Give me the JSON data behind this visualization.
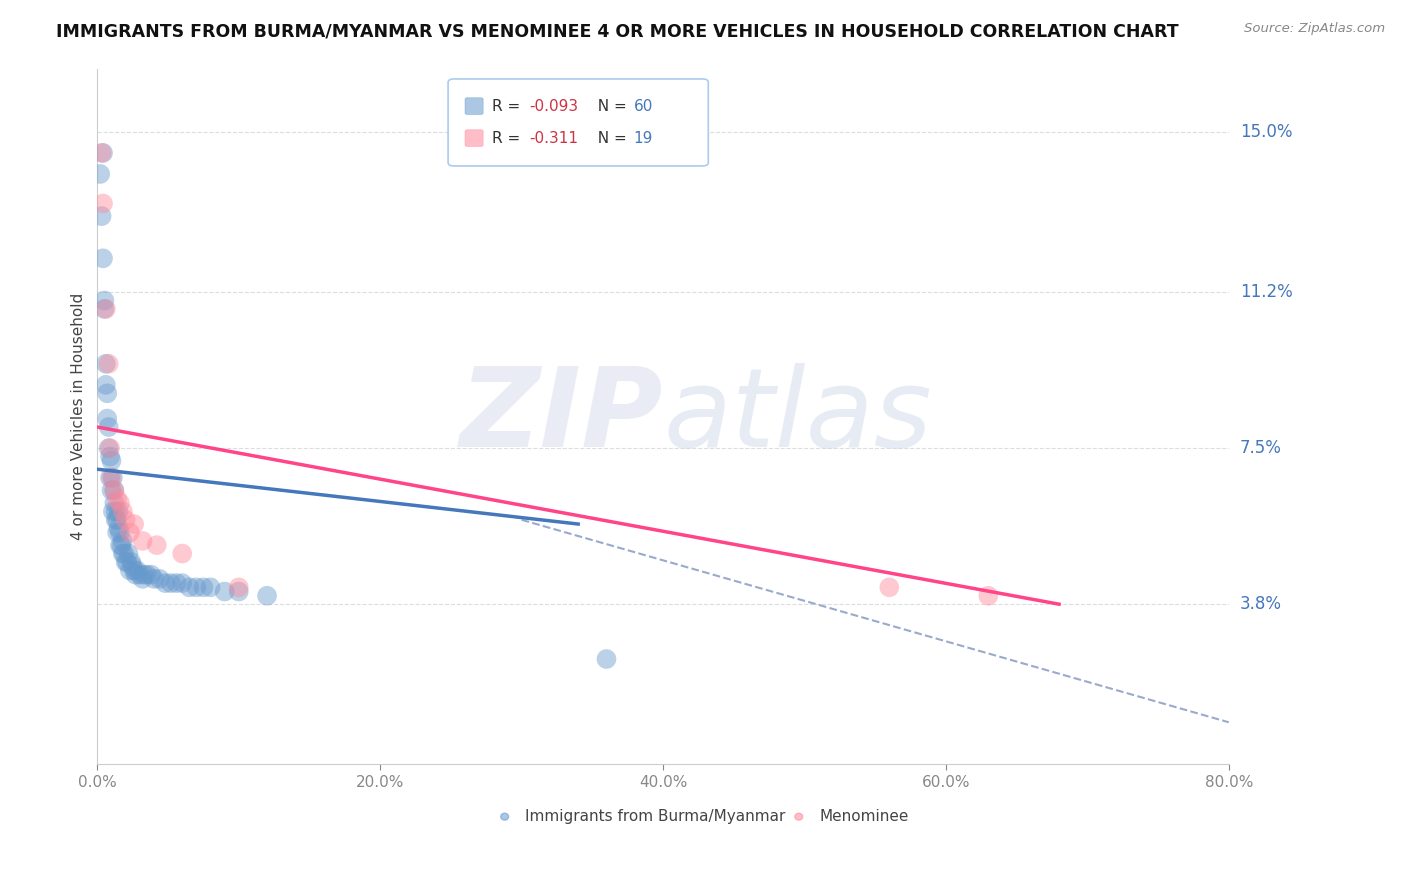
{
  "title": "IMMIGRANTS FROM BURMA/MYANMAR VS MENOMINEE 4 OR MORE VEHICLES IN HOUSEHOLD CORRELATION CHART",
  "source": "Source: ZipAtlas.com",
  "ylabel": "4 or more Vehicles in Household",
  "legend_labels": [
    "Immigrants from Burma/Myanmar",
    "Menominee"
  ],
  "blue_R": -0.093,
  "blue_N": 60,
  "pink_R": -0.311,
  "pink_N": 19,
  "blue_color": "#6699CC",
  "pink_color": "#FF8899",
  "blue_line_color": "#4477BB",
  "pink_line_color": "#FF4488",
  "dashed_line_color": "#99AACC",
  "xlim": [
    0.0,
    0.8
  ],
  "ylim": [
    0.0,
    0.165
  ],
  "yticks": [
    0.038,
    0.075,
    0.112,
    0.15
  ],
  "ytick_labels": [
    "3.8%",
    "7.5%",
    "11.2%",
    "15.0%"
  ],
  "xticks": [
    0.0,
    0.2,
    0.4,
    0.6,
    0.8
  ],
  "xtick_labels": [
    "0.0%",
    "20.0%",
    "40.0%",
    "60.0%",
    "80.0%"
  ],
  "blue_scatter_x": [
    0.002,
    0.003,
    0.004,
    0.004,
    0.005,
    0.005,
    0.006,
    0.006,
    0.007,
    0.007,
    0.008,
    0.008,
    0.009,
    0.009,
    0.01,
    0.01,
    0.011,
    0.011,
    0.012,
    0.012,
    0.013,
    0.013,
    0.014,
    0.014,
    0.015,
    0.015,
    0.016,
    0.016,
    0.017,
    0.018,
    0.018,
    0.019,
    0.02,
    0.021,
    0.022,
    0.023,
    0.024,
    0.025,
    0.026,
    0.027,
    0.028,
    0.03,
    0.032,
    0.033,
    0.035,
    0.038,
    0.04,
    0.044,
    0.048,
    0.052,
    0.056,
    0.06,
    0.065,
    0.07,
    0.075,
    0.08,
    0.09,
    0.1,
    0.12,
    0.36
  ],
  "blue_scatter_y": [
    0.14,
    0.13,
    0.12,
    0.145,
    0.11,
    0.108,
    0.095,
    0.09,
    0.088,
    0.082,
    0.08,
    0.075,
    0.073,
    0.068,
    0.072,
    0.065,
    0.068,
    0.06,
    0.065,
    0.062,
    0.06,
    0.058,
    0.058,
    0.055,
    0.06,
    0.056,
    0.055,
    0.052,
    0.052,
    0.05,
    0.053,
    0.05,
    0.048,
    0.048,
    0.05,
    0.046,
    0.048,
    0.047,
    0.046,
    0.045,
    0.046,
    0.045,
    0.044,
    0.045,
    0.045,
    0.045,
    0.044,
    0.044,
    0.043,
    0.043,
    0.043,
    0.043,
    0.042,
    0.042,
    0.042,
    0.042,
    0.041,
    0.041,
    0.04,
    0.025
  ],
  "pink_scatter_x": [
    0.003,
    0.004,
    0.006,
    0.008,
    0.009,
    0.01,
    0.012,
    0.014,
    0.016,
    0.018,
    0.02,
    0.023,
    0.026,
    0.032,
    0.042,
    0.06,
    0.1,
    0.56,
    0.63
  ],
  "pink_scatter_y": [
    0.145,
    0.133,
    0.108,
    0.095,
    0.075,
    0.068,
    0.065,
    0.063,
    0.062,
    0.06,
    0.058,
    0.055,
    0.057,
    0.053,
    0.052,
    0.05,
    0.042,
    0.042,
    0.04
  ],
  "blue_line_x": [
    0.0,
    0.34
  ],
  "blue_line_y": [
    0.07,
    0.057
  ],
  "pink_line_x": [
    0.0,
    0.68
  ],
  "pink_line_y": [
    0.08,
    0.038
  ],
  "dashed_line_x": [
    0.3,
    0.8
  ],
  "dashed_line_y": [
    0.058,
    0.01
  ]
}
